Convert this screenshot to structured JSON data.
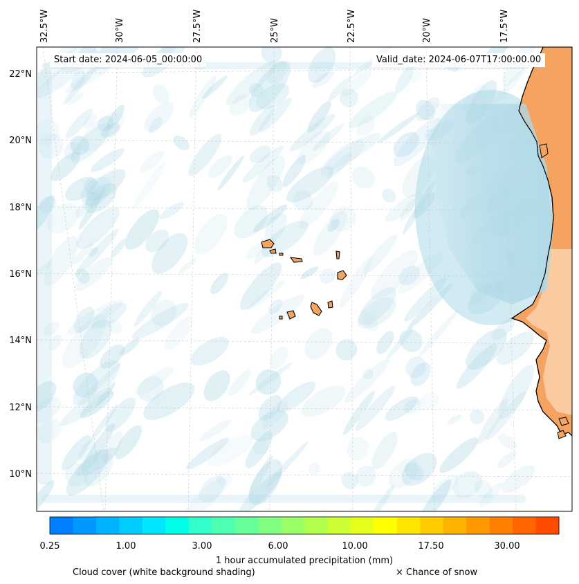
{
  "header": {
    "start_date": "Start date: 2024-06-05_00:00:00",
    "valid_date": "Valid_date: 2024-06-07T17:00:00.00"
  },
  "map": {
    "lon_labels": [
      "32.5°W",
      "30°W",
      "27.5°W",
      "25°W",
      "22.5°W",
      "20°W",
      "17.5°W"
    ],
    "lat_labels": [
      "22°N",
      "20°N",
      "18°N",
      "16°N",
      "14°N",
      "12°N",
      "10°N"
    ],
    "colors": {
      "cloud": "#add8e6",
      "land": "#f4a460",
      "land_light": "#fbd3b0",
      "coast": "#000000",
      "grid": "#bbbbbb"
    }
  },
  "colorbar": {
    "colors": [
      "#0080ff",
      "#0099ff",
      "#00b3ff",
      "#00ccff",
      "#00e6ff",
      "#00ffe6",
      "#33ffcc",
      "#4dffb3",
      "#66ff99",
      "#80ff80",
      "#99ff66",
      "#b3ff4d",
      "#ccff33",
      "#e6ff1a",
      "#ffff00",
      "#ffe600",
      "#ffcc00",
      "#ffb300",
      "#ff9900",
      "#ff8000",
      "#ff6600",
      "#ff4d00"
    ],
    "tick_labels": [
      "0.25",
      "1.00",
      "3.00",
      "6.00",
      "10.00",
      "17.50",
      "30.00"
    ],
    "title": "1 hour accumulated precipitation (mm)"
  },
  "footer": {
    "cloud_note": "Cloud cover (white background shading)",
    "snow_note": "× Chance of snow"
  }
}
